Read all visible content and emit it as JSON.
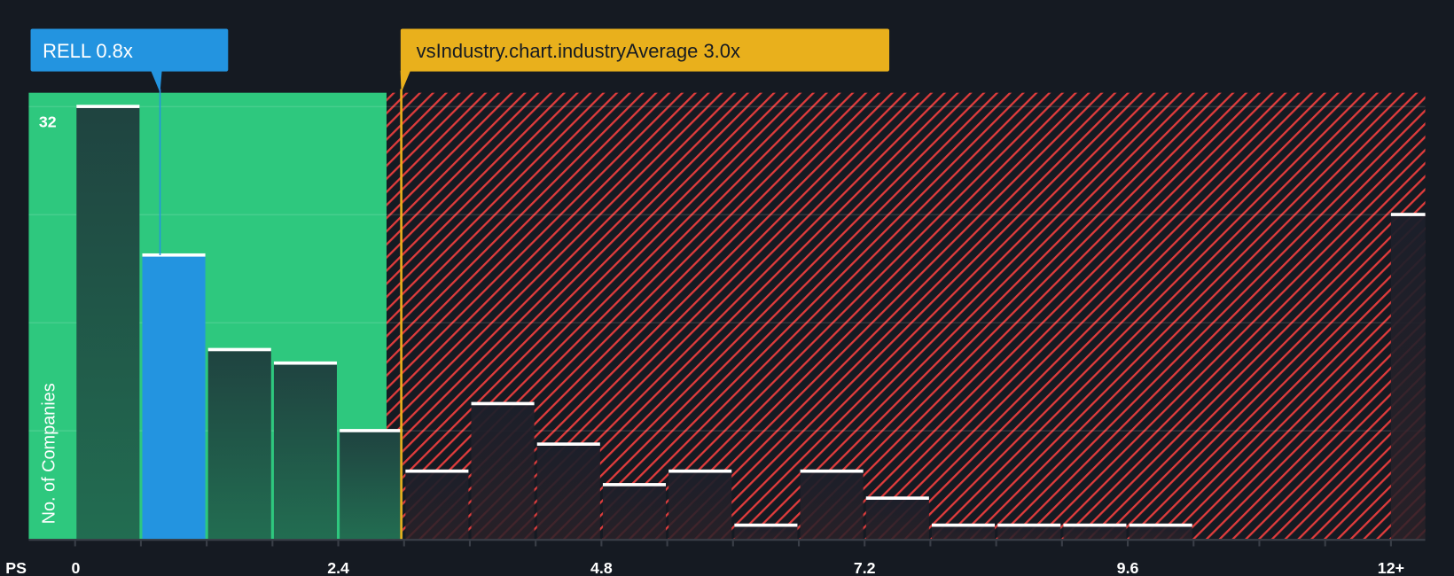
{
  "colors": {
    "background": "#151a22",
    "fair_zone": "#2ec87e",
    "bar_dark_top": "#1f4340",
    "bar_dark_bottom": "#226d51",
    "highlight": "#2394e0",
    "industry": "#e9b01c",
    "hatch": "#e03c3c"
  },
  "chart_data": {
    "type": "bar",
    "title": "",
    "xlabel": "PS",
    "ylabel": "No. of Companies",
    "ylim": [
      0,
      33
    ],
    "y_gridlines": [
      0,
      8,
      16,
      24,
      32
    ],
    "y_tick_labels": [
      {
        "value": 32,
        "label": "32"
      }
    ],
    "x_tick_labels": [
      {
        "value": 0,
        "label": "0"
      },
      {
        "value": 2.4,
        "label": "2.4"
      },
      {
        "value": 4.8,
        "label": "4.8"
      },
      {
        "value": 7.2,
        "label": "7.2"
      },
      {
        "value": 9.6,
        "label": "9.6"
      },
      {
        "value": 12,
        "label": "12+"
      }
    ],
    "bin_width": 0.6,
    "bins": [
      {
        "start": 0.0,
        "count": 32
      },
      {
        "start": 0.6,
        "count": 21,
        "highlight": true
      },
      {
        "start": 1.2,
        "count": 14
      },
      {
        "start": 1.8,
        "count": 13
      },
      {
        "start": 2.4,
        "count": 8
      },
      {
        "start": 3.0,
        "count": 5
      },
      {
        "start": 3.6,
        "count": 10
      },
      {
        "start": 4.2,
        "count": 7
      },
      {
        "start": 4.8,
        "count": 4
      },
      {
        "start": 5.4,
        "count": 5
      },
      {
        "start": 6.0,
        "count": 1
      },
      {
        "start": 6.6,
        "count": 5
      },
      {
        "start": 7.2,
        "count": 3
      },
      {
        "start": 7.8,
        "count": 1
      },
      {
        "start": 8.4,
        "count": 1
      },
      {
        "start": 9.0,
        "count": 1
      },
      {
        "start": 9.6,
        "count": 1
      },
      {
        "start": 12.0,
        "count": 24,
        "overflow": true
      }
    ],
    "fair_zone_end": 2.84,
    "company": {
      "label": "RELL 0.8x",
      "value": 0.8
    },
    "industry": {
      "label": "vsIndustry.chart.industryAverage 3.0x",
      "value": 3.0
    }
  }
}
